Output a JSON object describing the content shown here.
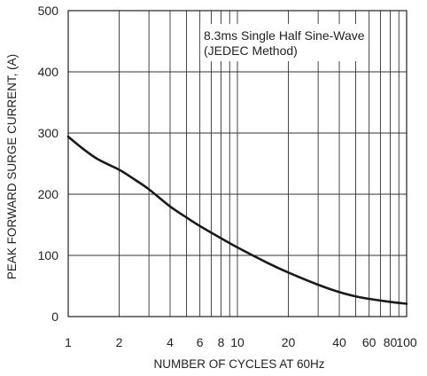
{
  "chart_data": {
    "type": "line",
    "title": "",
    "xlabel": "NUMBER OF CYCLES AT 60Hz",
    "ylabel": "PEAK FORWARD SURGE CURRENT, (A)",
    "xscale": "log",
    "xlim": [
      1,
      100
    ],
    "ylim": [
      0,
      500
    ],
    "x_ticks": [
      1,
      2,
      4,
      6,
      8,
      10,
      20,
      40,
      60,
      80,
      100
    ],
    "x_tick_labels": [
      "1",
      "2",
      "4",
      "6",
      "8",
      "10",
      "20",
      "40",
      "60",
      "80",
      "100"
    ],
    "x_minor_gridlines": [
      3,
      5,
      7,
      9,
      30,
      50,
      70,
      90
    ],
    "y_ticks": [
      0,
      100,
      200,
      300,
      400,
      500
    ],
    "y_tick_labels": [
      "0",
      "100",
      "200",
      "300",
      "400",
      "500"
    ],
    "grid": true,
    "annotations": [
      "8.3ms Single Half Sine-Wave",
      "(JEDEC Method)"
    ],
    "series": [
      {
        "color": "#1a1a1a",
        "x": [
          1,
          1.2,
          1.5,
          2,
          2.5,
          3,
          4,
          5,
          6,
          8,
          10,
          15,
          20,
          30,
          40,
          50,
          60,
          80,
          100
        ],
        "y": [
          294,
          276,
          257,
          240,
          223,
          208,
          180,
          162,
          148,
          128,
          113,
          88,
          72,
          52,
          40,
          33,
          29,
          24,
          21
        ]
      }
    ]
  }
}
